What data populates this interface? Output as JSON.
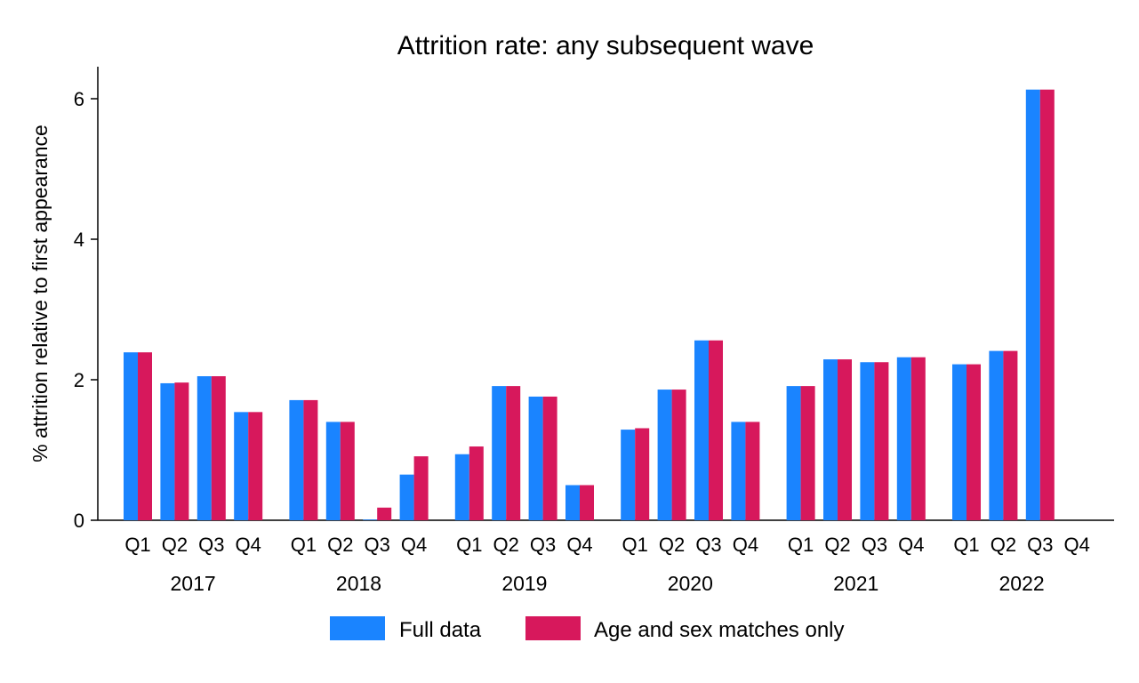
{
  "chart_data": {
    "type": "bar",
    "title": "Attrition rate: any subsequent wave",
    "ylabel": "% attrition relative to first appearance",
    "xlabel": "",
    "ylim": [
      0,
      6.5
    ],
    "yticks": [
      0,
      2,
      4,
      6
    ],
    "subcategories": [
      "Q1",
      "Q2",
      "Q3",
      "Q4"
    ],
    "groups": [
      "2017",
      "2018",
      "2019",
      "2020",
      "2021",
      "2022"
    ],
    "series": [
      {
        "name": "Full data",
        "color": "#1a84ff",
        "values": [
          2.39,
          1.95,
          2.05,
          1.54,
          1.71,
          1.4,
          0.01,
          0.65,
          0.94,
          1.91,
          1.76,
          0.5,
          1.29,
          1.86,
          2.56,
          1.4,
          1.91,
          2.29,
          2.25,
          2.32,
          2.22,
          2.41,
          6.13,
          null
        ]
      },
      {
        "name": "Age and sex matches only",
        "color": "#d7185c",
        "values": [
          2.39,
          1.96,
          2.05,
          1.54,
          1.71,
          1.4,
          0.18,
          0.91,
          1.05,
          1.91,
          1.76,
          0.5,
          1.31,
          1.86,
          2.56,
          1.4,
          1.91,
          2.29,
          2.25,
          2.32,
          2.22,
          2.41,
          6.13,
          null
        ]
      }
    ],
    "grid": false,
    "legend_position": "bottom"
  }
}
